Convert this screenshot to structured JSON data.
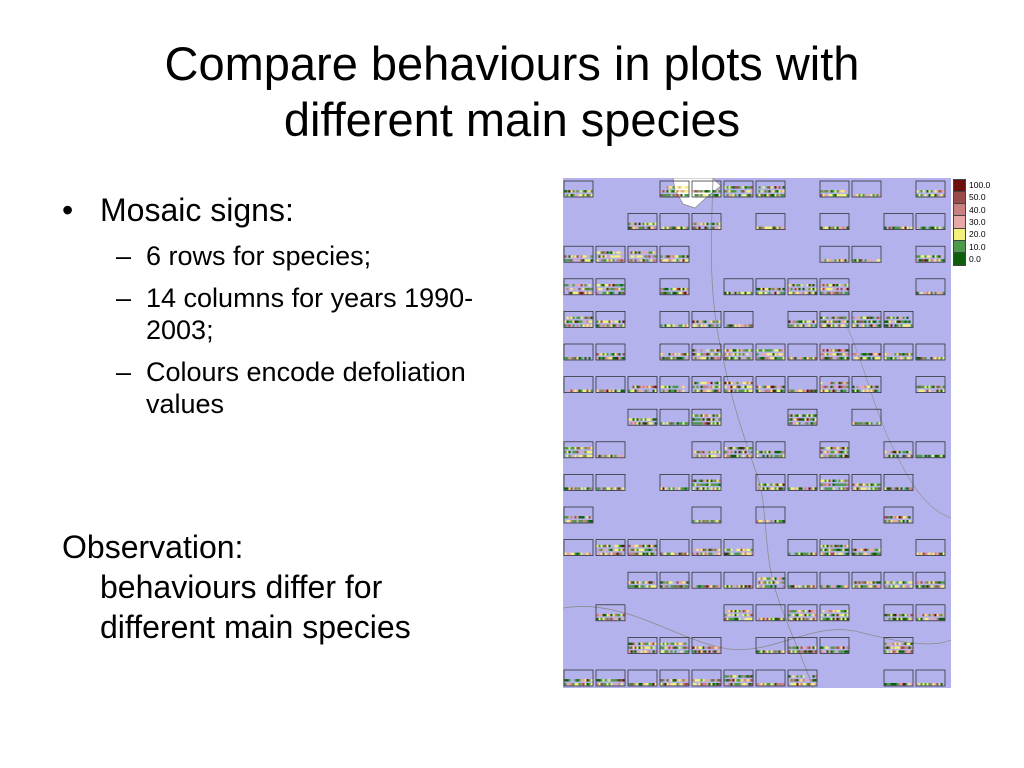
{
  "slide": {
    "title_line1": "Compare behaviours in plots with",
    "title_line2": "different main species",
    "bullet_main": "Mosaic signs:",
    "sub_bullets": [
      "6 rows for species;",
      "14 columns for years 1990-2003;",
      "Colours encode defoliation values"
    ],
    "observation_heading": "Observation:",
    "observation_line1": "behaviours differ for",
    "observation_line2": "different main species"
  },
  "legend": {
    "items": [
      {
        "label": "100.0",
        "color": "#6b0f0f"
      },
      {
        "label": "50.0",
        "color": "#9b4b4b"
      },
      {
        "label": "40.0",
        "color": "#c98080"
      },
      {
        "label": "30.0",
        "color": "#e8a8a8"
      },
      {
        "label": "20.0",
        "color": "#f3f07c"
      },
      {
        "label": "10.0",
        "color": "#4a9a4a"
      },
      {
        "label": "0.0",
        "color": "#0d5e0d"
      }
    ]
  },
  "map": {
    "water_color": "#b4b2ec",
    "boundary_color": "#8c8c8c"
  }
}
